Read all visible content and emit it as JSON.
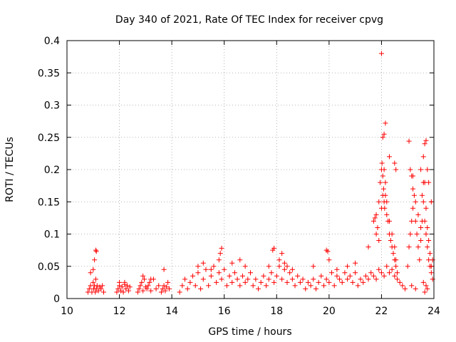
{
  "chart_data": {
    "type": "scatter",
    "title": "Day 340 of 2021, Rate Of TEC Index for receiver cpvg",
    "xlabel": "GPS time / hours",
    "ylabel": "ROTI / TECUs",
    "xlim": [
      10,
      24
    ],
    "ylim": [
      0,
      0.4
    ],
    "xticks": [
      10,
      12,
      14,
      16,
      18,
      20,
      22,
      24
    ],
    "yticks": [
      0,
      0.05,
      0.1,
      0.15,
      0.2,
      0.25,
      0.3,
      0.35,
      0.4
    ],
    "ytick_labels": [
      "0",
      "0.05",
      "0.1",
      "0.15",
      "0.2",
      "0.25",
      "0.3",
      "0.35",
      "0.4"
    ],
    "grid": true,
    "marker": "plus",
    "color": "#ff0000",
    "series": [
      {
        "x": [
          10.8,
          10.85,
          10.9,
          10.95,
          11.0,
          11.02,
          11.05,
          11.08,
          11.1,
          11.12,
          11.15,
          11.2,
          11.25,
          11.3,
          11.35,
          11.4,
          10.9,
          11.0,
          11.05,
          11.1,
          11.12,
          11.9,
          11.95,
          12.0,
          12.05,
          12.1,
          12.15,
          12.2,
          12.25,
          12.3,
          12.35,
          12.4,
          12.0,
          12.2,
          12.7,
          12.75,
          12.8,
          12.85,
          12.9,
          12.95,
          13.0,
          13.05,
          13.1,
          13.15,
          13.2,
          13.3,
          13.4,
          13.5,
          12.9,
          13.2,
          13.6,
          13.65,
          13.7,
          13.75,
          13.8,
          13.85,
          13.9,
          13.7,
          14.3,
          14.4,
          14.5,
          14.6,
          14.7,
          14.8,
          14.9,
          15.0,
          15.1,
          15.2,
          15.3,
          15.4,
          15.5,
          15.6,
          15.7,
          15.8,
          15.9,
          16.0,
          16.1,
          16.2,
          16.3,
          16.4,
          16.5,
          16.6,
          16.7,
          16.8,
          16.9,
          17.0,
          15.0,
          15.2,
          15.5,
          15.8,
          15.9,
          15.85,
          16.3,
          16.6,
          16.8,
          17.1,
          17.2,
          17.3,
          17.4,
          17.5,
          17.6,
          17.7,
          17.8,
          17.9,
          18.0,
          18.1,
          18.2,
          18.3,
          18.4,
          18.5,
          18.6,
          18.7,
          18.8,
          18.9,
          19.0,
          17.7,
          17.85,
          17.9,
          18.1,
          18.2,
          18.3,
          18.4,
          18.6,
          19.1,
          19.2,
          19.3,
          19.4,
          19.5,
          19.6,
          19.7,
          19.8,
          19.9,
          20.0,
          20.1,
          20.2,
          20.3,
          20.4,
          20.5,
          20.6,
          20.7,
          20.8,
          20.9,
          21.0,
          19.4,
          19.9,
          19.95,
          20.0,
          20.3,
          20.7,
          21.0,
          21.1,
          21.2,
          21.3,
          21.4,
          21.5,
          21.6,
          21.7,
          21.8,
          21.9,
          22.0,
          22.1,
          22.2,
          22.3,
          22.4,
          22.5,
          22.6,
          22.7,
          22.8,
          22.9,
          21.5,
          21.7,
          21.75,
          21.8,
          21.85,
          21.9,
          21.95,
          22.0,
          22.02,
          22.05,
          22.08,
          22.1,
          22.12,
          22.15,
          22.2,
          22.25,
          22.3,
          22.35,
          22.4,
          22.45,
          22.5,
          22.55,
          22.6,
          21.8,
          21.9,
          22.0,
          22.05,
          22.1,
          22.15,
          22.2,
          22.3,
          22.4,
          22.5,
          22.55,
          22.05,
          22.1,
          22.0,
          22.15,
          22.3,
          22.5,
          22.55,
          23.0,
          23.05,
          23.1,
          23.15,
          23.2,
          23.25,
          23.3,
          23.35,
          23.4,
          23.45,
          23.5,
          23.55,
          23.6,
          23.65,
          23.7,
          23.75,
          23.8,
          23.85,
          23.9,
          23.95,
          23.1,
          23.15,
          23.2,
          23.3,
          23.4,
          23.5,
          23.55,
          23.6,
          23.65,
          23.7,
          23.75,
          23.8,
          23.85,
          23.9,
          23.05,
          23.2,
          23.5,
          23.6,
          23.65,
          23.7,
          23.75,
          23.8,
          23.9,
          23.95,
          23.15,
          23.3,
          23.6,
          23.7,
          23.65,
          23.75
        ],
        "y": [
          0.01,
          0.015,
          0.02,
          0.01,
          0.025,
          0.015,
          0.02,
          0.01,
          0.03,
          0.015,
          0.02,
          0.012,
          0.018,
          0.015,
          0.02,
          0.01,
          0.04,
          0.045,
          0.06,
          0.075,
          0.073,
          0.01,
          0.015,
          0.02,
          0.012,
          0.018,
          0.01,
          0.025,
          0.015,
          0.02,
          0.012,
          0.018,
          0.025,
          0.022,
          0.01,
          0.015,
          0.02,
          0.025,
          0.012,
          0.03,
          0.018,
          0.015,
          0.02,
          0.025,
          0.012,
          0.03,
          0.015,
          0.02,
          0.035,
          0.03,
          0.01,
          0.015,
          0.02,
          0.012,
          0.018,
          0.025,
          0.015,
          0.045,
          0.01,
          0.02,
          0.03,
          0.015,
          0.025,
          0.035,
          0.02,
          0.04,
          0.015,
          0.03,
          0.045,
          0.02,
          0.035,
          0.05,
          0.025,
          0.04,
          0.03,
          0.045,
          0.02,
          0.035,
          0.025,
          0.04,
          0.03,
          0.02,
          0.035,
          0.025,
          0.03,
          0.04,
          0.05,
          0.055,
          0.045,
          0.06,
          0.078,
          0.07,
          0.055,
          0.06,
          0.05,
          0.02,
          0.03,
          0.015,
          0.025,
          0.035,
          0.02,
          0.03,
          0.04,
          0.025,
          0.035,
          0.05,
          0.03,
          0.045,
          0.025,
          0.04,
          0.03,
          0.02,
          0.035,
          0.025,
          0.03,
          0.05,
          0.075,
          0.078,
          0.06,
          0.07,
          0.055,
          0.05,
          0.045,
          0.015,
          0.025,
          0.02,
          0.03,
          0.015,
          0.025,
          0.035,
          0.02,
          0.03,
          0.025,
          0.04,
          0.02,
          0.035,
          0.03,
          0.025,
          0.04,
          0.03,
          0.035,
          0.025,
          0.04,
          0.05,
          0.075,
          0.073,
          0.06,
          0.045,
          0.05,
          0.055,
          0.02,
          0.03,
          0.025,
          0.035,
          0.03,
          0.04,
          0.035,
          0.03,
          0.045,
          0.04,
          0.035,
          0.05,
          0.04,
          0.045,
          0.035,
          0.03,
          0.025,
          0.02,
          0.015,
          0.08,
          0.12,
          0.125,
          0.13,
          0.11,
          0.15,
          0.18,
          0.2,
          0.21,
          0.19,
          0.17,
          0.15,
          0.14,
          0.16,
          0.13,
          0.12,
          0.1,
          0.09,
          0.08,
          0.07,
          0.06,
          0.05,
          0.04,
          0.1,
          0.09,
          0.14,
          0.16,
          0.2,
          0.18,
          0.15,
          0.12,
          0.1,
          0.08,
          0.06,
          0.25,
          0.255,
          0.38,
          0.272,
          0.22,
          0.21,
          0.2,
          0.05,
          0.08,
          0.1,
          0.12,
          0.14,
          0.16,
          0.12,
          0.1,
          0.08,
          0.06,
          0.09,
          0.12,
          0.15,
          0.18,
          0.14,
          0.11,
          0.09,
          0.07,
          0.05,
          0.03,
          0.2,
          0.19,
          0.17,
          0.15,
          0.13,
          0.11,
          0.16,
          0.18,
          0.12,
          0.1,
          0.08,
          0.06,
          0.05,
          0.04,
          0.244,
          0.19,
          0.2,
          0.22,
          0.24,
          0.245,
          0.2,
          0.18,
          0.15,
          0.06,
          0.02,
          0.015,
          0.025,
          0.02,
          0.01,
          0.015
        ]
      }
    ]
  }
}
